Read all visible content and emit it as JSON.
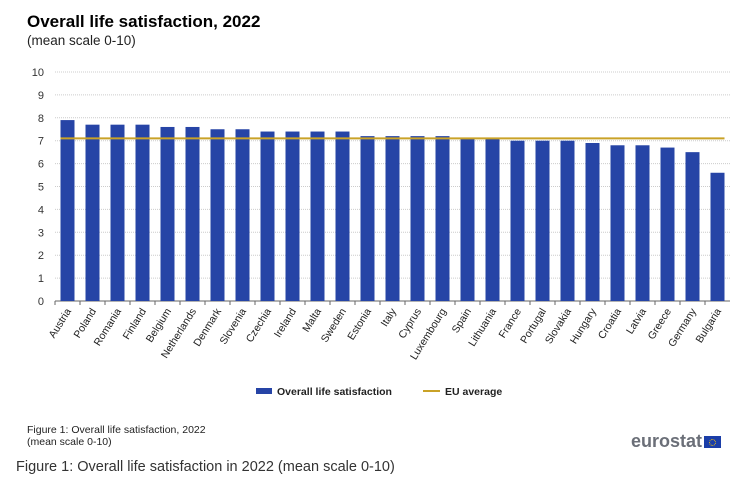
{
  "chart_data": {
    "type": "bar",
    "title": "Overall life satisfaction, 2022",
    "subtitle": "(mean scale 0-10)",
    "categories": [
      "Austria",
      "Poland",
      "Romania",
      "Finland",
      "Belgium",
      "Netherlands",
      "Denmark",
      "Slovenia",
      "Czechia",
      "Ireland",
      "Malta",
      "Sweden",
      "Estonia",
      "Italy",
      "Cyprus",
      "Luxembourg",
      "Spain",
      "Lithuania",
      "France",
      "Portugal",
      "Slovakia",
      "Hungary",
      "Croatia",
      "Latvia",
      "Greece",
      "Germany",
      "Bulgaria"
    ],
    "series": [
      {
        "name": "Overall life satisfaction",
        "type": "bar",
        "color": "#2644a6",
        "values": [
          7.9,
          7.7,
          7.7,
          7.7,
          7.6,
          7.6,
          7.5,
          7.5,
          7.4,
          7.4,
          7.4,
          7.4,
          7.2,
          7.2,
          7.2,
          7.2,
          7.1,
          7.1,
          7.0,
          7.0,
          7.0,
          6.9,
          6.8,
          6.8,
          6.7,
          6.5,
          5.6
        ]
      },
      {
        "name": "EU average",
        "type": "line",
        "color": "#c9a227",
        "value": 7.1
      }
    ],
    "ylim": [
      0,
      10
    ],
    "yticks": [
      "0",
      "1",
      "2",
      "3",
      "4",
      "5",
      "6",
      "7",
      "8",
      "9",
      "10"
    ],
    "grid": true,
    "legend": "bottom"
  },
  "footnote": [
    "Figure 1: Overall life satisfaction, 2022",
    "(mean scale 0-10)"
  ],
  "caption": "Figure 1: Overall life satisfaction in 2022 (mean scale 0-10)",
  "logo": "eurostat"
}
